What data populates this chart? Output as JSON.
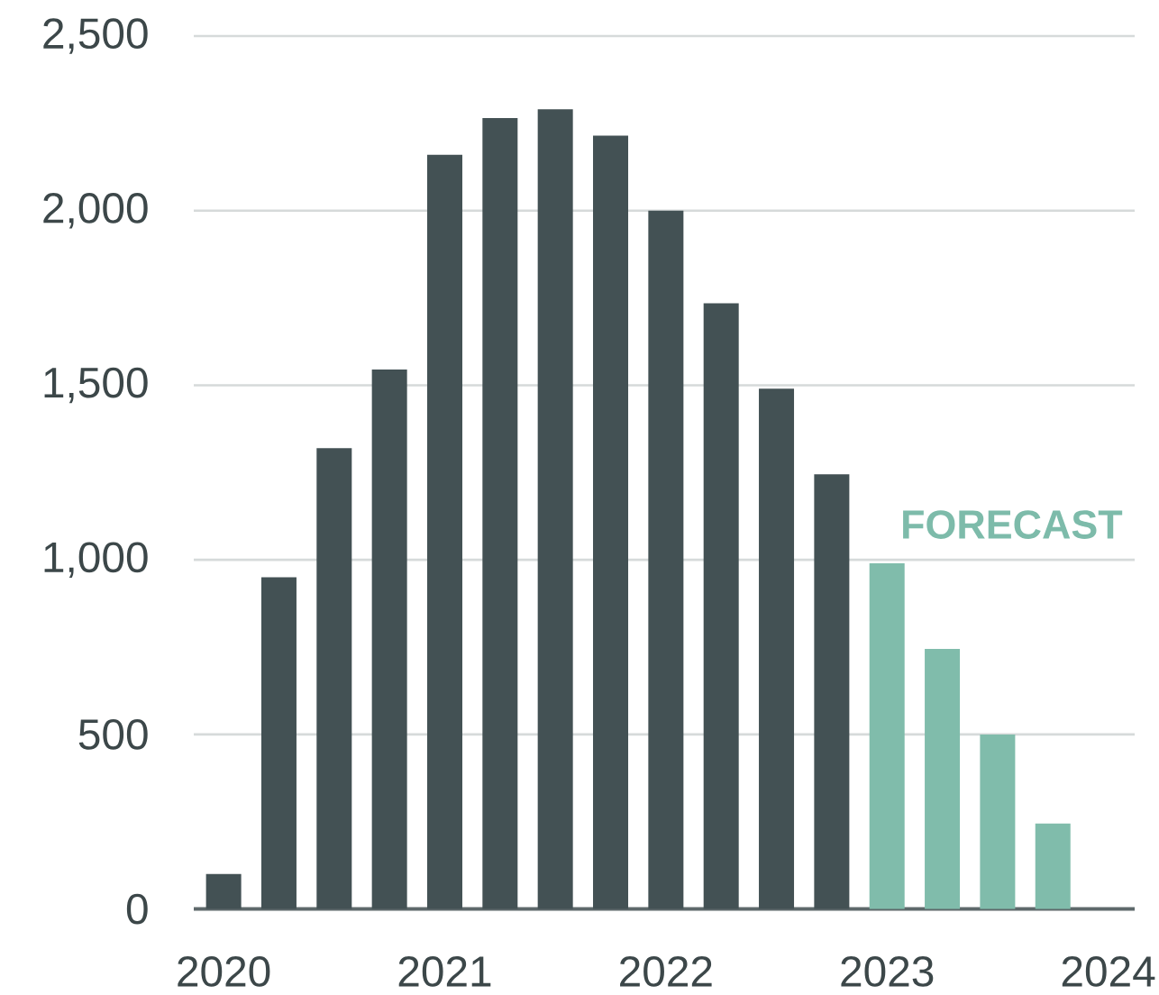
{
  "chart_data": {
    "type": "bar",
    "x": [
      2020,
      2020.25,
      2020.5,
      2020.75,
      2021,
      2021.25,
      2021.5,
      2021.75,
      2022,
      2022.25,
      2022.5,
      2022.75,
      2023,
      2023.25,
      2023.5,
      2023.75
    ],
    "values": [
      100,
      950,
      1320,
      1545,
      2160,
      2265,
      2290,
      2215,
      2000,
      1735,
      1490,
      1245,
      990,
      745,
      500,
      245
    ],
    "colors": [
      "#435154",
      "#435154",
      "#435154",
      "#435154",
      "#435154",
      "#435154",
      "#435154",
      "#435154",
      "#435154",
      "#435154",
      "#435154",
      "#435154",
      "#80bcab",
      "#80bcab",
      "#80bcab",
      "#80bcab"
    ],
    "xlim": [
      2019.865,
      2024.12
    ],
    "xticks": [
      2020,
      2021,
      2022,
      2023,
      2024
    ],
    "ylim": [
      0,
      2500
    ],
    "yticks": [
      0,
      500,
      {
        "value": 1000,
        "label": "1,000"
      },
      {
        "value": 1500,
        "label": "1,500"
      },
      {
        "value": 2000,
        "label": "2,000"
      },
      {
        "value": 2500,
        "label": "2,500"
      }
    ],
    "grid": "y",
    "annotations": [
      "FORECAST"
    ]
  }
}
